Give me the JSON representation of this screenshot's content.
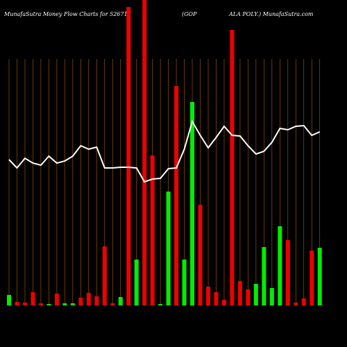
{
  "chart_data": {
    "type": "bar",
    "title_left": "MunafaSutra  Money Flow  Charts for 526717",
    "title_mid": "(GOP",
    "title_right": "ALA POLY.) MunafaSutra.com",
    "values": [
      15,
      5,
      4,
      19,
      3,
      2,
      17,
      3,
      3,
      11,
      18,
      13,
      85,
      3,
      12,
      430,
      66,
      440,
      216,
      2,
      164,
      316,
      66,
      293,
      145,
      27,
      19,
      8,
      397,
      35,
      23,
      31,
      84,
      25,
      114,
      94,
      4,
      10,
      79,
      83
    ],
    "colors": [
      "#00ee00",
      "#ee0000",
      "#ee0000",
      "#ee0000",
      "#ee0000",
      "#00ee00",
      "#ee0000",
      "#00ee00",
      "#00ee00",
      "#ee0000",
      "#ee0000",
      "#ee0000",
      "#ee0000",
      "#ee0000",
      "#00ee00",
      "#ee0000",
      "#00ee00",
      "#ee0000",
      "#ee0000",
      "#00ee00",
      "#00ee00",
      "#ee0000",
      "#00ee00",
      "#00ee00",
      "#ee0000",
      "#ee0000",
      "#ee0000",
      "#ee0000",
      "#ee0000",
      "#ee0000",
      "#ee0000",
      "#00ee00",
      "#00ee00",
      "#00ee00",
      "#00ee00",
      "#ee0000",
      "#ee0000",
      "#ee0000",
      "#ee0000",
      "#00ee00"
    ],
    "line": {
      "color": "#ffffff",
      "values": [
        210,
        198,
        212,
        205,
        202,
        215,
        205,
        208,
        215,
        230,
        225,
        228,
        198,
        198,
        199,
        199,
        198,
        178,
        182,
        183,
        197,
        198,
        225,
        265,
        245,
        227,
        242,
        258,
        245,
        244,
        230,
        218,
        222,
        235,
        255,
        253,
        258,
        259,
        245,
        250
      ]
    },
    "ylim": [
      0,
      430
    ]
  }
}
